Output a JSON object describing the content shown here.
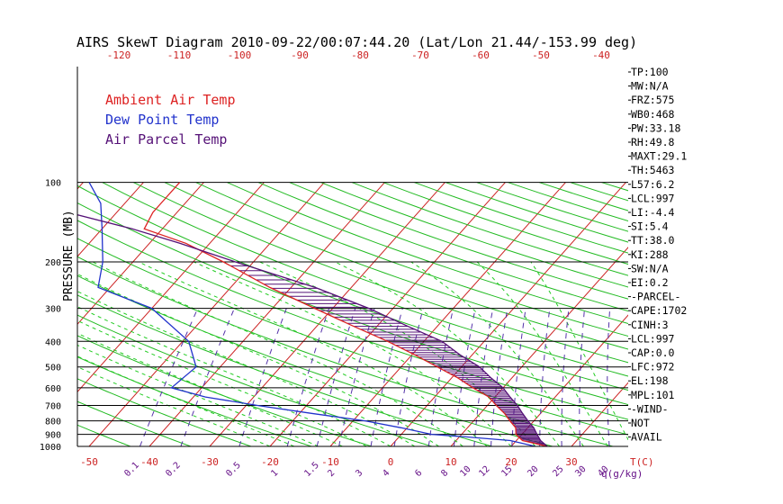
{
  "chart_data": {
    "type": "skewt",
    "title": "AIRS SkewT Diagram 2010-09-22/00:07:44.20 (Lat/Lon 21.44/-153.99 deg)",
    "ylabel": "PRESSURE (MB)",
    "y_scale": "log",
    "ylim": [
      1000,
      100
    ],
    "pressure_ticks": [
      100,
      200,
      300,
      400,
      500,
      600,
      700,
      800,
      900,
      1000
    ],
    "top_temp_ticks": [
      -120,
      -110,
      -100,
      -90,
      -80,
      -70,
      -60,
      -50,
      -40
    ],
    "bottom_temp_ticks": [
      -50,
      -40,
      -30,
      -20,
      -10,
      0,
      10,
      20,
      30
    ],
    "bottom_temp_unit": "T(C)",
    "mixing_ratio_ticks": [
      "0.1",
      "0.2",
      "0.5",
      "1",
      "1.5",
      "2",
      "3",
      "4",
      "6",
      "8",
      "10",
      "12",
      "15",
      "20",
      "25",
      "30",
      "40"
    ],
    "mixing_ratio_unit": "q(g/kg)",
    "legend": [
      {
        "name": "Ambient Air Temp",
        "color": "#dd2222"
      },
      {
        "name": "Dew Point Temp",
        "color": "#2233cc"
      },
      {
        "name": "Air Parcel Temp",
        "color": "#551177"
      }
    ],
    "series": [
      {
        "name": "Ambient Air Temp",
        "points": [
          [
            1000,
            26
          ],
          [
            980,
            24
          ],
          [
            950,
            21
          ],
          [
            900,
            19
          ],
          [
            850,
            18
          ],
          [
            800,
            16
          ],
          [
            750,
            14
          ],
          [
            700,
            11.5
          ],
          [
            650,
            9
          ],
          [
            600,
            5
          ],
          [
            550,
            1
          ],
          [
            500,
            -4
          ],
          [
            450,
            -9.5
          ],
          [
            400,
            -16
          ],
          [
            350,
            -24
          ],
          [
            300,
            -33
          ],
          [
            250,
            -43.5
          ],
          [
            200,
            -55
          ],
          [
            170,
            -64
          ],
          [
            150,
            -73
          ],
          [
            130,
            -74
          ],
          [
            115,
            -74
          ],
          [
            100,
            -74
          ]
        ]
      },
      {
        "name": "Dew Point Temp",
        "points": [
          [
            1000,
            24
          ],
          [
            980,
            22
          ],
          [
            950,
            19
          ],
          [
            920,
            11
          ],
          [
            900,
            5
          ],
          [
            850,
            -1
          ],
          [
            800,
            -8
          ],
          [
            750,
            -18
          ],
          [
            700,
            -28
          ],
          [
            650,
            -38
          ],
          [
            600,
            -45
          ],
          [
            500,
            -44
          ],
          [
            400,
            -49
          ],
          [
            300,
            -60
          ],
          [
            250,
            -72
          ],
          [
            200,
            -75
          ],
          [
            150,
            -80
          ],
          [
            120,
            -84
          ],
          [
            100,
            -89
          ]
        ]
      },
      {
        "name": "Air Parcel Temp",
        "points": [
          [
            1000,
            26
          ],
          [
            950,
            24
          ],
          [
            900,
            22.5
          ],
          [
            850,
            21
          ],
          [
            800,
            19
          ],
          [
            750,
            17
          ],
          [
            700,
            15
          ],
          [
            650,
            12.5
          ],
          [
            600,
            10
          ],
          [
            550,
            6.5
          ],
          [
            500,
            3
          ],
          [
            450,
            -2
          ],
          [
            400,
            -7
          ],
          [
            350,
            -15
          ],
          [
            300,
            -24
          ],
          [
            250,
            -36
          ],
          [
            200,
            -53
          ],
          [
            170,
            -65
          ],
          [
            150,
            -75
          ],
          [
            130,
            -88
          ],
          [
            115,
            -97
          ],
          [
            100,
            -105
          ]
        ]
      }
    ],
    "indices": [
      "TP:100",
      "MW:N/A",
      "FRZ:575",
      "WB0:468",
      "PW:33.18",
      "RH:49.8",
      "MAXT:29.1",
      "TH:5463",
      "L57:6.2",
      "LCL:997",
      "LI:-4.4",
      "SI:5.4",
      "TT:38.0",
      "KI:288",
      "SW:N/A",
      "EI:0.2",
      "-PARCEL-",
      "CAPE:1702",
      "CINH:3",
      "LCL:997",
      "CAP:0.0",
      "LFC:972",
      "EL:198",
      "MPL:101",
      "-WIND-",
      "NOT",
      "AVAIL"
    ],
    "colors": {
      "isotherm": "#cc2222",
      "dry_adiabat": "#22bb22",
      "moist_adiabat": "#22cc22",
      "mixing_ratio": "#5533aa",
      "tick_label": "#cc2222",
      "mixing_label": "#661188",
      "isobar": "#000000",
      "cape_hatch": "#551177"
    }
  }
}
